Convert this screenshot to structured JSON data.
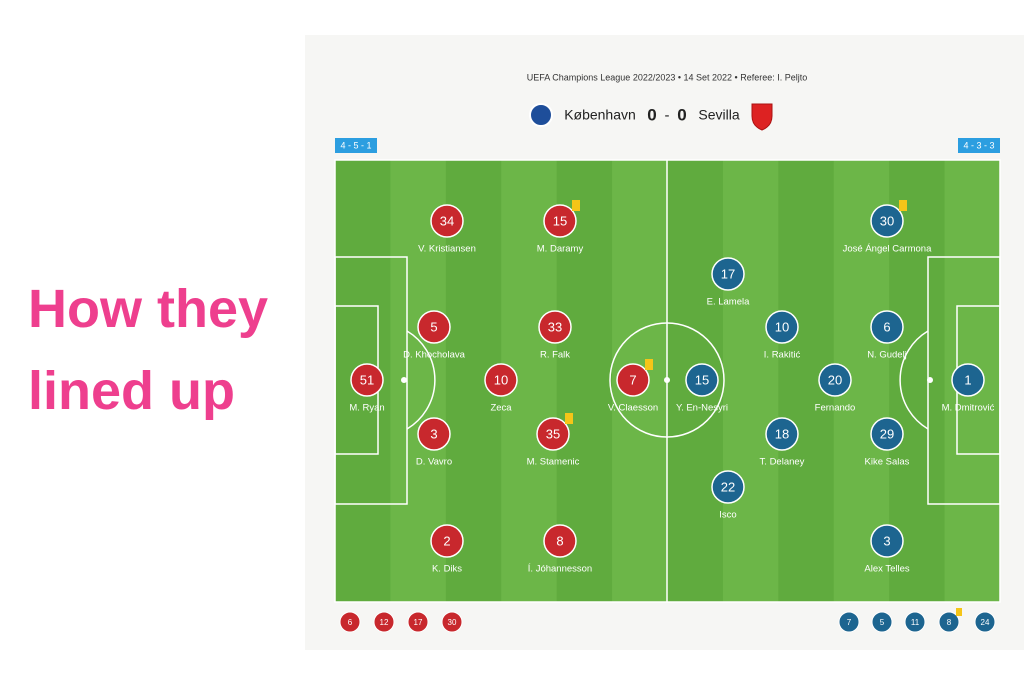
{
  "headline": "How they lined up",
  "match": {
    "info": "UEFA Champions League 2022/2023 • 14 Set 2022 • Referee: I. Peljto",
    "home_team": "København",
    "home_score": 0,
    "separator": "-",
    "away_score": 0,
    "away_team": "Sevilla"
  },
  "home": {
    "formation": "4 - 5 - 1",
    "color": "#c8282d",
    "players": [
      {
        "number": 34,
        "name": "V. Kristiansen"
      },
      {
        "number": 15,
        "name": "M. Daramy",
        "yellow_card": true
      },
      {
        "number": 5,
        "name": "D. Khocholava"
      },
      {
        "number": 33,
        "name": "R. Falk"
      },
      {
        "number": 51,
        "name": "M. Ryan"
      },
      {
        "number": 10,
        "name": "Zeca"
      },
      {
        "number": 7,
        "name": "V. Claesson",
        "yellow_card": true
      },
      {
        "number": 3,
        "name": "D. Vavro"
      },
      {
        "number": 35,
        "name": "M. Stamenic",
        "yellow_card": true
      },
      {
        "number": 2,
        "name": "K. Diks"
      },
      {
        "number": 8,
        "name": "Í. Jóhannesson"
      }
    ],
    "subs": [
      {
        "number": 6
      },
      {
        "number": 12
      },
      {
        "number": 17
      },
      {
        "number": 30
      }
    ]
  },
  "away": {
    "formation": "4 - 3 - 3",
    "color": "#1d6590",
    "players": [
      {
        "number": 30,
        "name": "José Ángel Carmona",
        "yellow_card": true
      },
      {
        "number": 17,
        "name": "E. Lamela"
      },
      {
        "number": 10,
        "name": "I. Rakitić"
      },
      {
        "number": 6,
        "name": "N. Gudelj"
      },
      {
        "number": 15,
        "name": "Y. En-Nesyri"
      },
      {
        "number": 20,
        "name": "Fernando"
      },
      {
        "number": 1,
        "name": "M. Dmitrović"
      },
      {
        "number": 18,
        "name": "T. Delaney"
      },
      {
        "number": 29,
        "name": "Kike Salas"
      },
      {
        "number": 22,
        "name": "Isco"
      },
      {
        "number": 3,
        "name": "Alex Telles"
      }
    ],
    "subs": [
      {
        "number": 7
      },
      {
        "number": 5
      },
      {
        "number": 11
      },
      {
        "number": 8,
        "yellow_card": true
      },
      {
        "number": 24
      }
    ]
  }
}
